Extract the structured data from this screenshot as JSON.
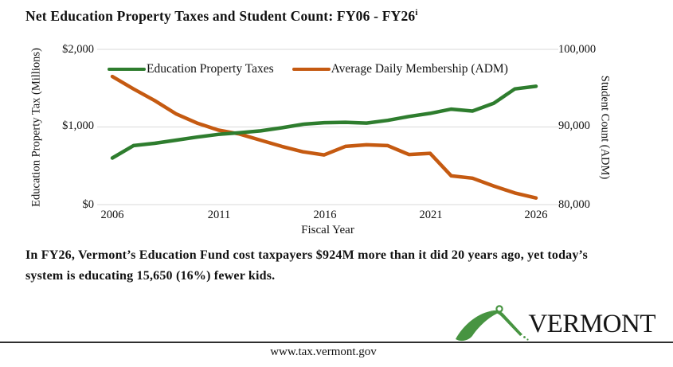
{
  "title": {
    "text": "Net Education Property Taxes and Student Count: FY06 - FY26",
    "footnote_marker": "i"
  },
  "chart_data": {
    "type": "line",
    "x": [
      2006,
      2007,
      2008,
      2009,
      2010,
      2011,
      2012,
      2013,
      2014,
      2015,
      2016,
      2017,
      2018,
      2019,
      2020,
      2021,
      2022,
      2023,
      2024,
      2025,
      2026
    ],
    "x_tick_labels": [
      "2006",
      "2011",
      "2016",
      "2021",
      "2026"
    ],
    "xlabel": "Fiscal Year",
    "grid": true,
    "legend_position": "top-inside",
    "left_axis": {
      "label": "Education Property Tax (Millions)",
      "ticks": [
        "$2,000",
        "$1,000",
        "$0"
      ],
      "range": [
        0,
        2000
      ]
    },
    "right_axis": {
      "label": "Student Count (ADM)",
      "ticks": [
        "100,000",
        "90,000",
        "80,000"
      ],
      "range": [
        80000,
        100000
      ]
    },
    "series": [
      {
        "name": "Education Property Taxes",
        "axis": "left",
        "color": "#2e7d2e",
        "values": [
          600,
          760,
          790,
          830,
          870,
          905,
          925,
          950,
          990,
          1035,
          1055,
          1060,
          1050,
          1085,
          1135,
          1175,
          1230,
          1205,
          1305,
          1490,
          1524
        ]
      },
      {
        "name": "Average Daily Membership (ADM)",
        "axis": "right",
        "color": "#c55a11",
        "values": [
          96500,
          94900,
          93400,
          91700,
          90500,
          89600,
          89100,
          88300,
          87500,
          86800,
          86400,
          87500,
          87700,
          87600,
          86450,
          86600,
          83700,
          83400,
          82400,
          81500,
          80850
        ]
      }
    ]
  },
  "takeaway": "In FY26, Vermont’s Education Fund cost taxpayers $924M more than it did 20 years ago, yet today’s system is educating 15,650 (16%) fewer kids.",
  "logo": {
    "text": "VERMONT",
    "icon": "mountain-logo",
    "color": "#479441"
  },
  "footer": {
    "url": "www.tax.vermont.gov"
  }
}
